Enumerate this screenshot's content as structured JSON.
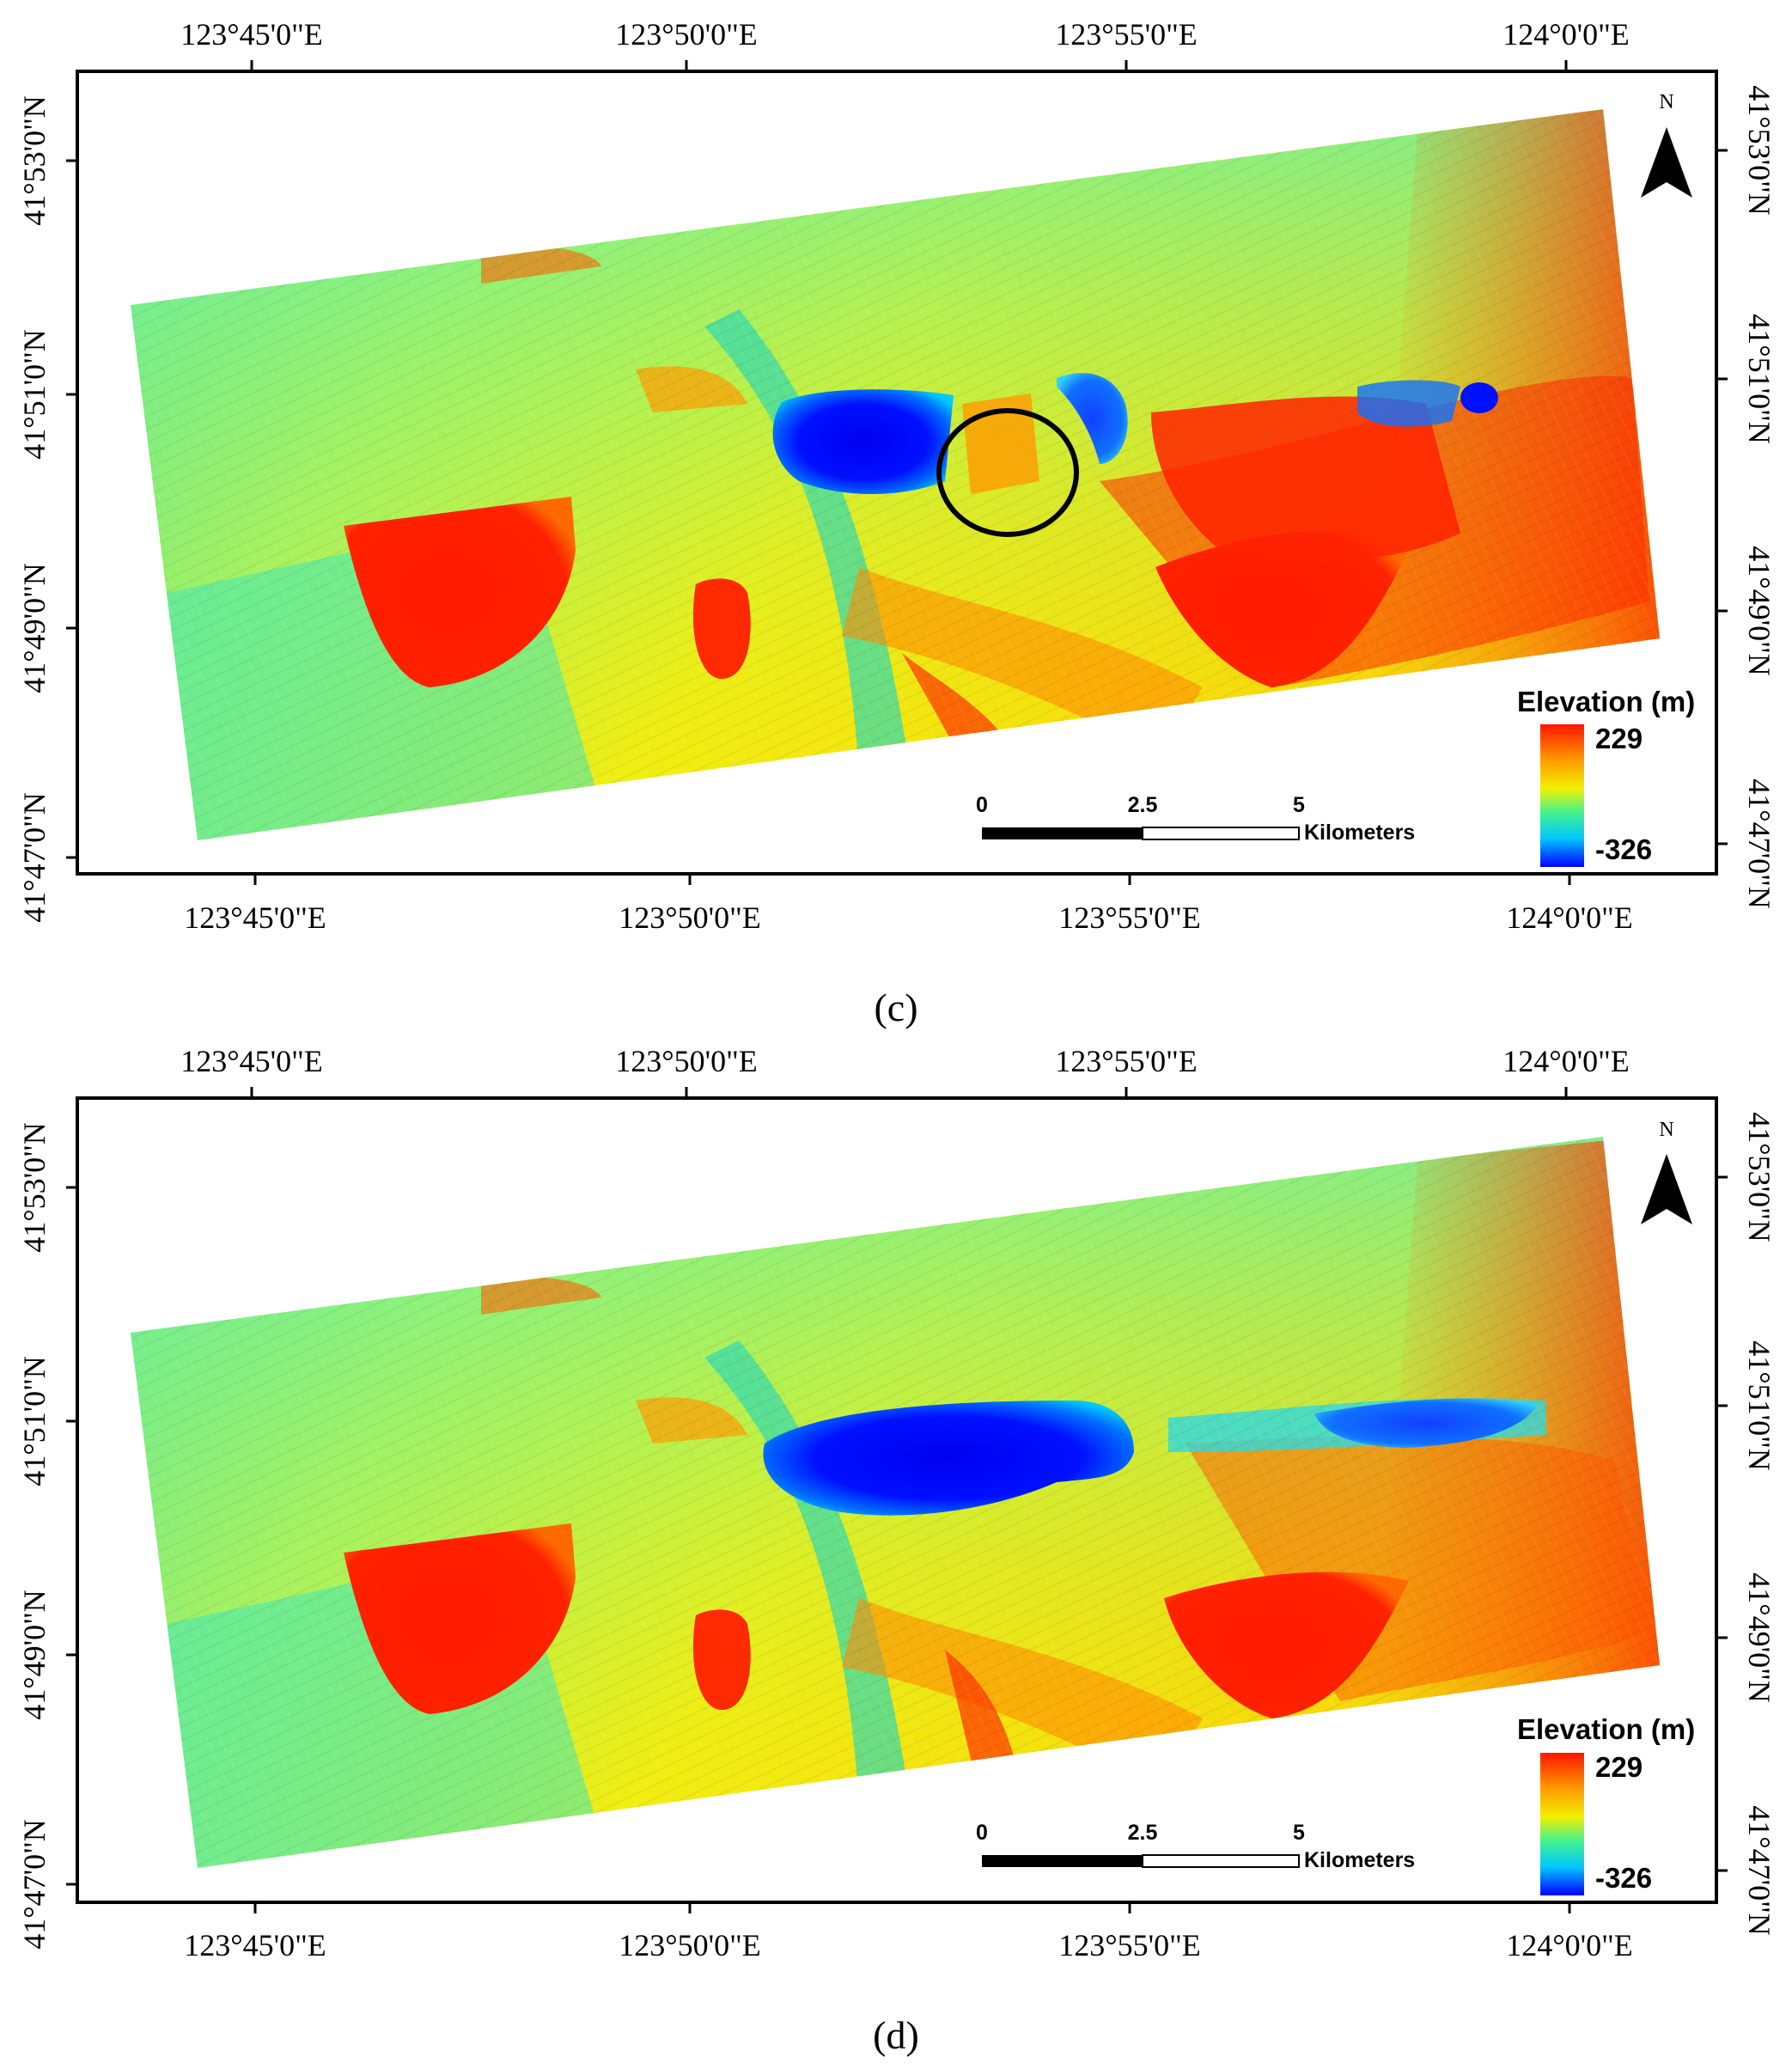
{
  "colors": {
    "dem_high": "#ff1500",
    "dem_mid_high": "#ff9a00",
    "dem_mid": "#f2f000",
    "dem_mid_low": "#41f28f",
    "dem_low": "#00c8ff",
    "dem_lowest": "#0000ff",
    "frame": "#000000"
  },
  "panels": [
    {
      "caption": "(c)",
      "top_lon_labels": [
        "123°45'0\"E",
        "123°50'0\"E",
        "123°55'0\"E",
        "124°0'0\"E"
      ],
      "bottom_lon_labels": [
        "123°45'0\"E",
        "123°50'0\"E",
        "123°55'0\"E",
        "124°0'0\"E"
      ],
      "left_lat_labels": [
        "41°53'0\"N",
        "41°51'0\"N",
        "41°49'0\"N",
        "41°47'0\"N"
      ],
      "right_lat_labels": [
        "41°53'0\"N",
        "41°51'0\"N",
        "41°49'0\"N",
        "41°47'0\"N"
      ],
      "north_label": "N",
      "legend": {
        "title": "Elevation (m)",
        "max": "229",
        "min": "-326"
      },
      "scale_bar": {
        "ticks": [
          "0",
          "2.5",
          "5"
        ],
        "unit": "Kilometers"
      },
      "has_circle_annotation": true
    },
    {
      "caption": "(d)",
      "top_lon_labels": [
        "123°45'0\"E",
        "123°50'0\"E",
        "123°55'0\"E",
        "124°0'0\"E"
      ],
      "bottom_lon_labels": [
        "123°45'0\"E",
        "123°50'0\"E",
        "123°55'0\"E",
        "124°0'0\"E"
      ],
      "left_lat_labels": [
        "41°53'0\"N",
        "41°51'0\"N",
        "41°49'0\"N",
        "41°47'0\"N"
      ],
      "right_lat_labels": [
        "41°53'0\"N",
        "41°51'0\"N",
        "41°49'0\"N",
        "41°47'0\"N"
      ],
      "north_label": "N",
      "legend": {
        "title": "Elevation (m)",
        "max": "229",
        "min": "-326"
      },
      "scale_bar": {
        "ticks": [
          "0",
          "2.5",
          "5"
        ],
        "unit": "Kilometers"
      },
      "has_circle_annotation": false
    }
  ]
}
